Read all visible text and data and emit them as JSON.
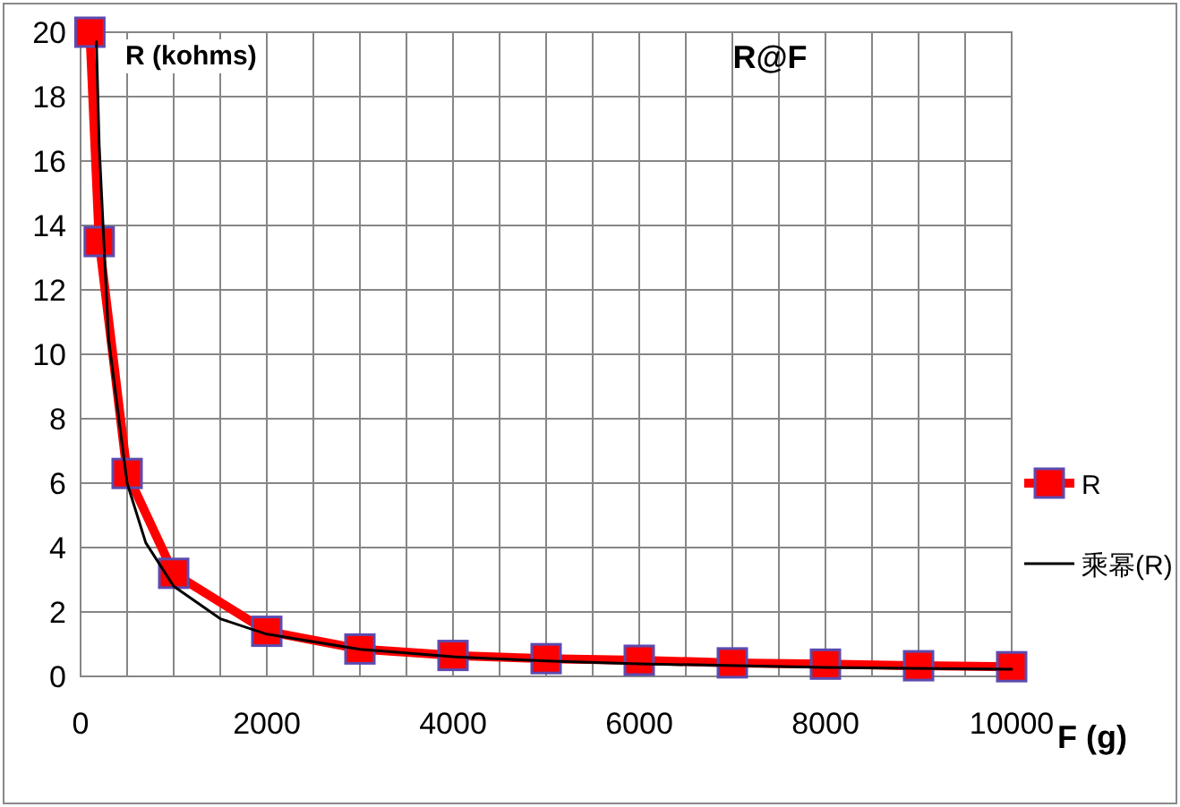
{
  "chart_data": {
    "type": "line",
    "title": "R@F",
    "xlabel": "F (g)",
    "ylabel": "R (kohms)",
    "xlim": [
      0,
      10000
    ],
    "ylim": [
      0,
      20
    ],
    "xticks": [
      0,
      {
        "value": 500,
        "label": null
      },
      {
        "value": 1000,
        "label": null
      },
      {
        "value": 1500,
        "label": null
      },
      2000,
      {
        "value": 2500,
        "label": null
      },
      {
        "value": 3000,
        "label": null
      },
      {
        "value": 3500,
        "label": null
      },
      4000,
      {
        "value": 4500,
        "label": null
      },
      {
        "value": 5000,
        "label": null
      },
      {
        "value": 5500,
        "label": null
      },
      6000,
      {
        "value": 6500,
        "label": null
      },
      {
        "value": 7000,
        "label": null
      },
      {
        "value": 7500,
        "label": null
      },
      8000,
      {
        "value": 8500,
        "label": null
      },
      {
        "value": 9000,
        "label": null
      },
      {
        "value": 9500,
        "label": null
      },
      10000
    ],
    "yticks": [
      0,
      2,
      4,
      6,
      8,
      10,
      12,
      14,
      16,
      18,
      20
    ],
    "grid": true,
    "legend": "right",
    "series": [
      {
        "name": "R",
        "color": "#ff0000",
        "marker": "square",
        "x": [
          100,
          200,
          500,
          1000,
          2000,
          3000,
          4000,
          5000,
          6000,
          7000,
          8000,
          9000,
          10000
        ],
        "values": [
          20,
          13.5,
          6.3,
          3.2,
          1.4,
          0.85,
          0.65,
          0.55,
          0.5,
          0.42,
          0.38,
          0.33,
          0.3
        ]
      },
      {
        "name": "乘幂(R)",
        "color": "#000000",
        "marker": "none",
        "x": [
          170,
          200,
          300,
          500,
          700,
          1000,
          1500,
          2000,
          3000,
          4000,
          5000,
          6000,
          8000,
          10000
        ],
        "values": [
          19.7,
          16.5,
          10.5,
          6.0,
          4.15,
          2.8,
          1.79,
          1.31,
          0.84,
          0.61,
          0.48,
          0.39,
          0.28,
          0.22
        ]
      }
    ]
  }
}
